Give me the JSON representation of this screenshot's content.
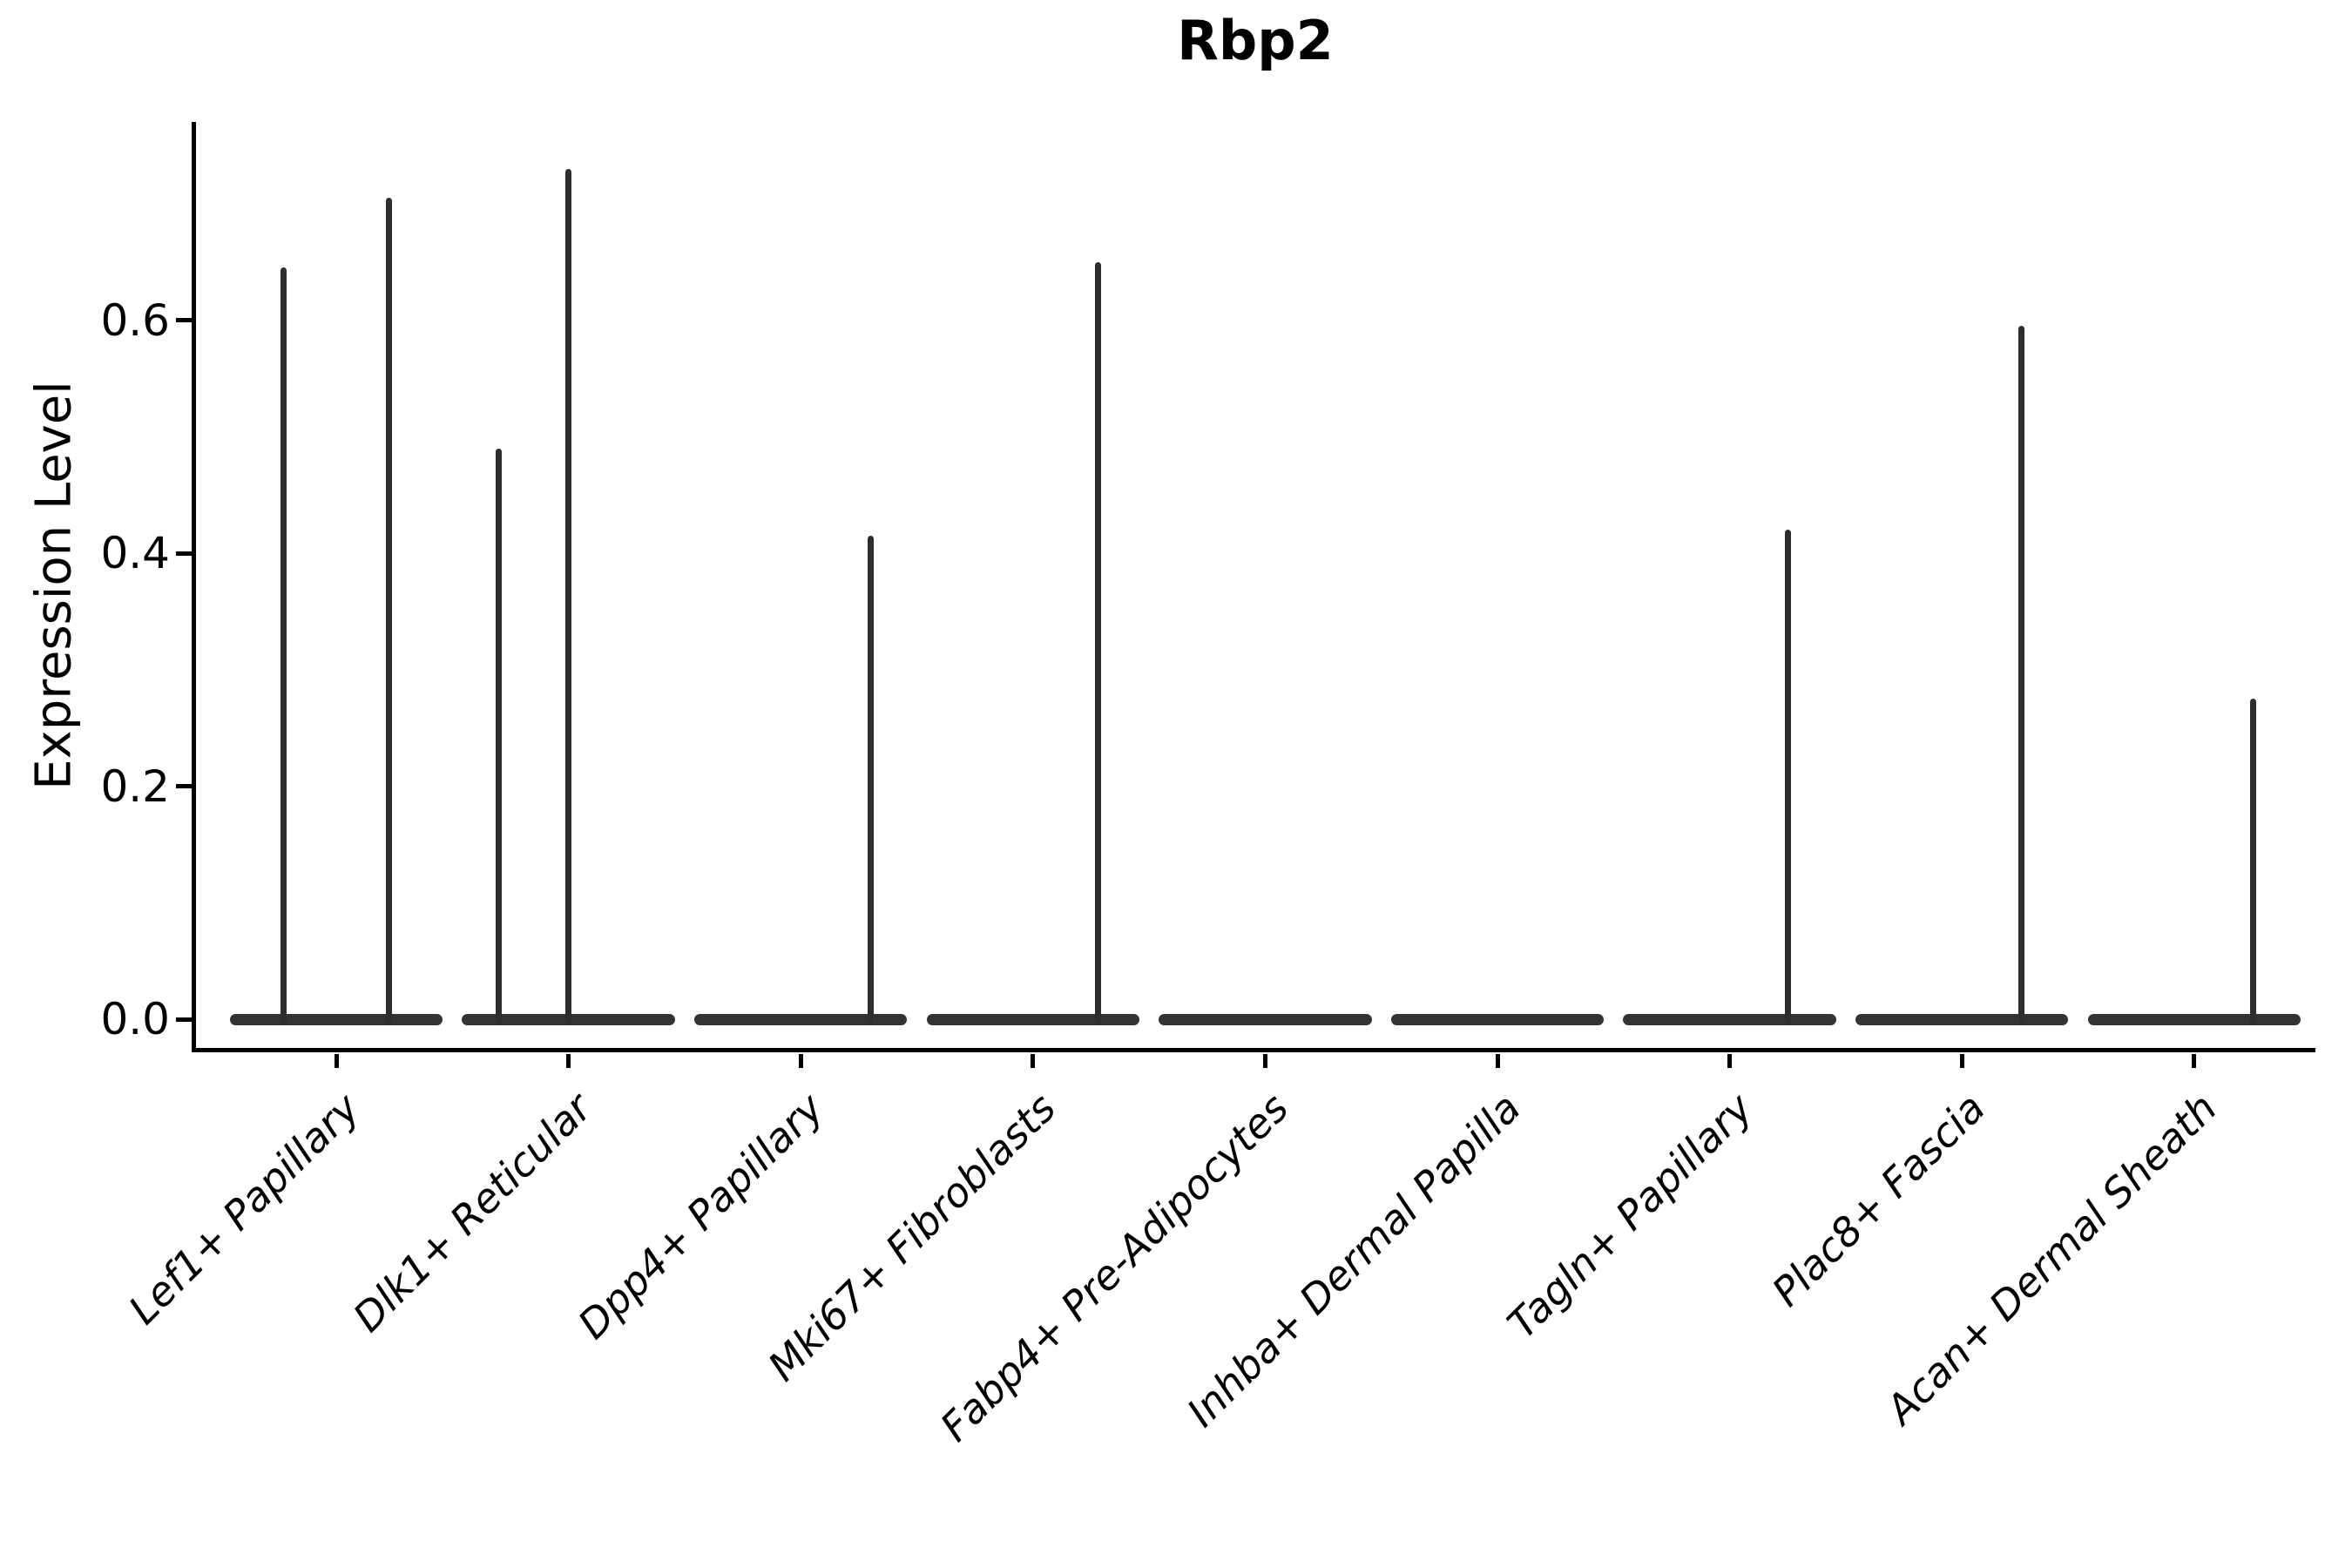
{
  "figure": {
    "title": "Rbp2",
    "ylabel": "Expression Level"
  },
  "styles": {
    "background": "#ffffff",
    "ink": "#000000",
    "violin_fill": "#333333",
    "spike_color": "#2e2e2e"
  },
  "chart_data": {
    "type": "violin",
    "title": "Rbp2",
    "xlabel": "",
    "ylabel": "Expression Level",
    "ylim": [
      -0.03,
      0.77
    ],
    "yticks": [
      0.0,
      0.2,
      0.4,
      0.6
    ],
    "ytick_labels": [
      "0.0",
      "0.2",
      "0.4",
      "0.6"
    ],
    "grid": false,
    "legend_position": "none",
    "x_tick_label_rotation_deg": 45,
    "x_tick_label_style": "italic",
    "categories": [
      "Lef1+ Papillary",
      "Dlk1+ Reticular",
      "Dpp4+ Papillary",
      "Mki67+ Fibroblasts",
      "Fabp4+ Pre-Adipocytes",
      "Inhba+ Dermal Papilla",
      "Tagln+ Papillary",
      "Plac8+ Fascia",
      "Acan+ Dermal Sheath"
    ],
    "baseline_value": 0.0,
    "baseline_half_width_frac": 0.4575,
    "violins": [
      {
        "category": "Lef1+ Papillary",
        "bulk_at_zero": true,
        "spikes": [
          {
            "offset_frac": -0.225,
            "max": 0.645
          },
          {
            "offset_frac": 0.225,
            "max": 0.705
          }
        ]
      },
      {
        "category": "Dlk1+ Reticular",
        "bulk_at_zero": true,
        "spikes": [
          {
            "offset_frac": -0.3,
            "max": 0.49
          },
          {
            "offset_frac": 0.0,
            "max": 0.73
          }
        ]
      },
      {
        "category": "Dpp4+ Papillary",
        "bulk_at_zero": true,
        "spikes": [
          {
            "offset_frac": 0.3,
            "max": 0.415
          }
        ]
      },
      {
        "category": "Mki67+ Fibroblasts",
        "bulk_at_zero": true,
        "spikes": [
          {
            "offset_frac": 0.28,
            "max": 0.65
          }
        ]
      },
      {
        "category": "Fabp4+ Pre-Adipocytes",
        "bulk_at_zero": true,
        "spikes": []
      },
      {
        "category": "Inhba+ Dermal Papilla",
        "bulk_at_zero": true,
        "spikes": []
      },
      {
        "category": "Tagln+ Papillary",
        "bulk_at_zero": true,
        "spikes": [
          {
            "offset_frac": 0.25,
            "max": 0.42
          }
        ]
      },
      {
        "category": "Plac8+ Fascia",
        "bulk_at_zero": true,
        "spikes": [
          {
            "offset_frac": 0.255,
            "max": 0.595
          }
        ]
      },
      {
        "category": "Acan+ Dermal Sheath",
        "bulk_at_zero": true,
        "spikes": [
          {
            "offset_frac": 0.255,
            "max": 0.275
          }
        ]
      }
    ]
  }
}
